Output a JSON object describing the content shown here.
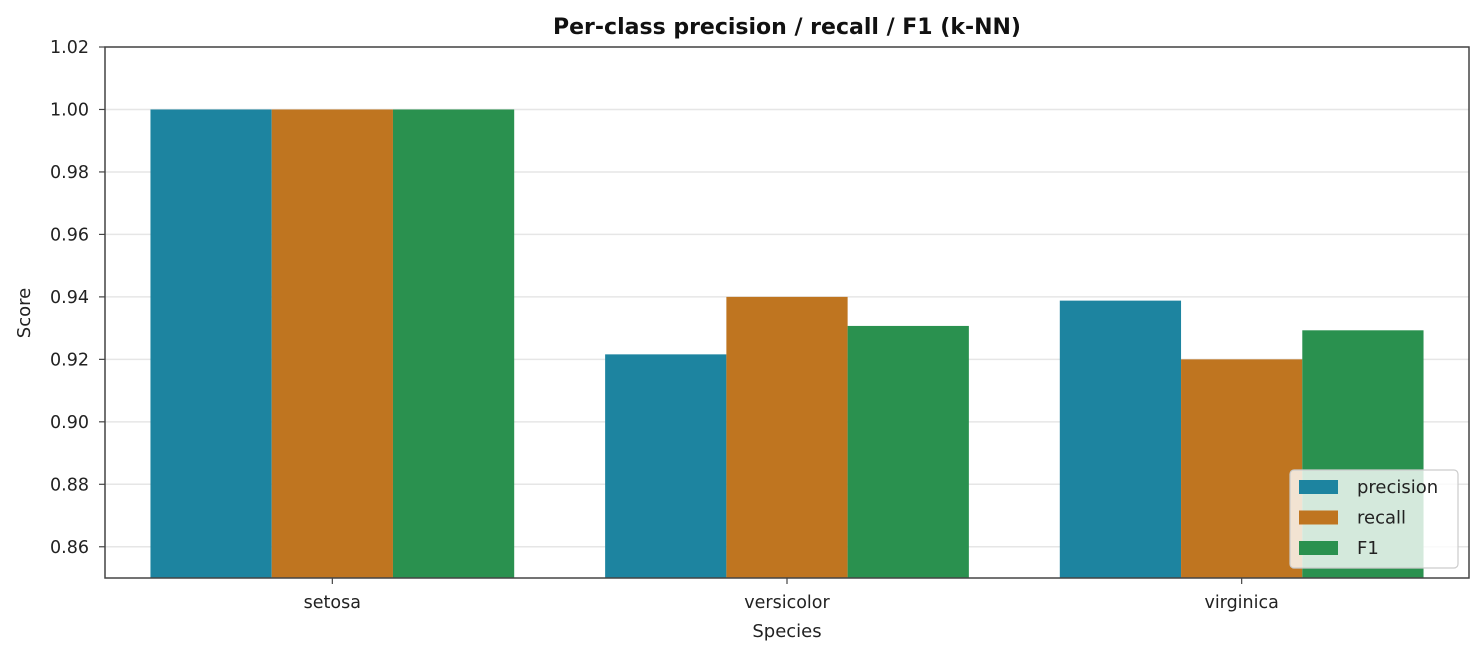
{
  "chart_data": {
    "type": "bar",
    "title": "Per-class precision / recall / F1   (k-NN)",
    "xlabel": "Species",
    "ylabel": "Score",
    "categories": [
      "setosa",
      "versicolor",
      "virginica"
    ],
    "series": [
      {
        "name": "precision",
        "color": "#1d84a0",
        "values": [
          1.0,
          0.9216,
          0.9388
        ]
      },
      {
        "name": "recall",
        "color": "#bf7520",
        "values": [
          1.0,
          0.94,
          0.92
        ]
      },
      {
        "name": "F1",
        "color": "#2a914f",
        "values": [
          1.0,
          0.9307,
          0.9293
        ]
      }
    ],
    "ylim": [
      0.85,
      1.02
    ],
    "yticks": [
      "0.86",
      "0.88",
      "0.90",
      "0.92",
      "0.94",
      "0.96",
      "0.98",
      "1.00",
      "1.02"
    ],
    "grid": "y",
    "legend_position": "bottom-right"
  }
}
